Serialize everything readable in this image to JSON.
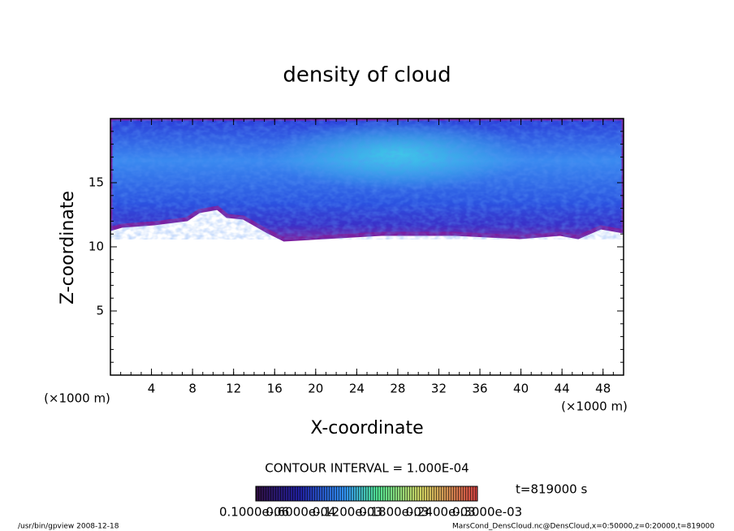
{
  "chart_data": {
    "type": "heatmap",
    "title": "density of cloud",
    "x_label": "X-coordinate",
    "y_label": "Z-coordinate",
    "x_unit": "(×1000 m)",
    "y_unit": "(×1000 m)",
    "xlim": [
      0,
      50
    ],
    "xticks": [
      4,
      8,
      12,
      16,
      20,
      24,
      28,
      32,
      36,
      40,
      44,
      48
    ],
    "ylim": [
      0,
      20
    ],
    "yticks": [
      5,
      10,
      15
    ],
    "contour_interval": "CONTOUR INTERVAL = 1.000E-04",
    "time": "t=819000 s",
    "colorbar_labels": [
      "0.1000e-06",
      "0.6000e-04",
      "0.1200e-03",
      "0.1800e-03",
      "0.2400e-03",
      "0.3000e-03"
    ],
    "footer_left": "/usr/bin/gpview   2008-12-18",
    "footer_right": "MarsCond_DensCloud.nc@DensCloud,x=0:50000,z=0:20000,t=819000"
  }
}
